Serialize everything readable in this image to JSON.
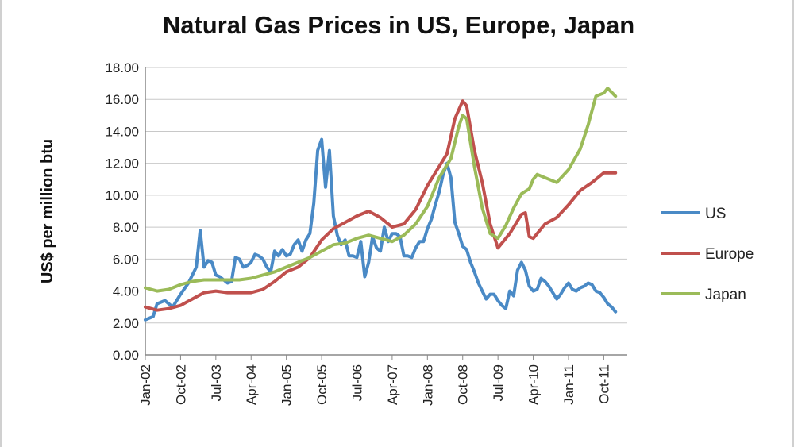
{
  "chart_data": {
    "type": "line",
    "title": "Natural Gas Prices in US, Europe, Japan",
    "ylabel": "US$ per million btu",
    "xlabel": "",
    "ylim": [
      0,
      18
    ],
    "yticks": [
      "0.00",
      "2.00",
      "4.00",
      "6.00",
      "8.00",
      "10.00",
      "12.00",
      "14.00",
      "16.00",
      "18.00"
    ],
    "xticks": [
      "Jan-02",
      "Oct-02",
      "Jul-03",
      "Apr-04",
      "Jan-05",
      "Oct-05",
      "Jul-06",
      "Apr-07",
      "Jan-08",
      "Oct-08",
      "Jul-09",
      "Apr-10",
      "Jan-11",
      "Oct-11"
    ],
    "grid": true,
    "legend_position": "right",
    "series": [
      {
        "name": "US",
        "color": "#4a8ac6",
        "points": [
          [
            "Jan-02",
            2.2
          ],
          [
            "Mar-02",
            2.4
          ],
          [
            "Apr-02",
            3.2
          ],
          [
            "Jun-02",
            3.4
          ],
          [
            "Aug-02",
            3.0
          ],
          [
            "Oct-02",
            3.8
          ],
          [
            "Dec-02",
            4.5
          ],
          [
            "Feb-03",
            5.5
          ],
          [
            "Mar-03",
            7.8
          ],
          [
            "Apr-03",
            5.5
          ],
          [
            "May-03",
            5.9
          ],
          [
            "Jun-03",
            5.8
          ],
          [
            "Jul-03",
            5.0
          ],
          [
            "Aug-03",
            4.9
          ],
          [
            "Sep-03",
            4.7
          ],
          [
            "Oct-03",
            4.5
          ],
          [
            "Nov-03",
            4.6
          ],
          [
            "Dec-03",
            6.1
          ],
          [
            "Jan-04",
            6.0
          ],
          [
            "Feb-04",
            5.5
          ],
          [
            "Mar-04",
            5.6
          ],
          [
            "Apr-04",
            5.8
          ],
          [
            "May-04",
            6.3
          ],
          [
            "Jun-04",
            6.2
          ],
          [
            "Jul-04",
            6.0
          ],
          [
            "Aug-04",
            5.5
          ],
          [
            "Sep-04",
            5.2
          ],
          [
            "Oct-04",
            6.5
          ],
          [
            "Nov-04",
            6.2
          ],
          [
            "Dec-04",
            6.6
          ],
          [
            "Jan-05",
            6.2
          ],
          [
            "Feb-05",
            6.3
          ],
          [
            "Mar-05",
            6.9
          ],
          [
            "Apr-05",
            7.2
          ],
          [
            "May-05",
            6.5
          ],
          [
            "Jun-05",
            7.2
          ],
          [
            "Jul-05",
            7.6
          ],
          [
            "Aug-05",
            9.5
          ],
          [
            "Sep-05",
            12.8
          ],
          [
            "Oct-05",
            13.5
          ],
          [
            "Nov-05",
            10.5
          ],
          [
            "Dec-05",
            12.8
          ],
          [
            "Jan-06",
            8.7
          ],
          [
            "Feb-06",
            7.5
          ],
          [
            "Mar-06",
            6.9
          ],
          [
            "Apr-06",
            7.2
          ],
          [
            "May-06",
            6.2
          ],
          [
            "Jun-06",
            6.2
          ],
          [
            "Jul-06",
            6.1
          ],
          [
            "Aug-06",
            7.1
          ],
          [
            "Sep-06",
            4.9
          ],
          [
            "Oct-06",
            5.8
          ],
          [
            "Nov-06",
            7.4
          ],
          [
            "Dec-06",
            6.7
          ],
          [
            "Jan-07",
            6.5
          ],
          [
            "Feb-07",
            8.0
          ],
          [
            "Mar-07",
            7.1
          ],
          [
            "Apr-07",
            7.6
          ],
          [
            "May-07",
            7.6
          ],
          [
            "Jun-07",
            7.4
          ],
          [
            "Jul-07",
            6.2
          ],
          [
            "Aug-07",
            6.2
          ],
          [
            "Sep-07",
            6.1
          ],
          [
            "Oct-07",
            6.7
          ],
          [
            "Nov-07",
            7.1
          ],
          [
            "Dec-07",
            7.1
          ],
          [
            "Jan-08",
            7.9
          ],
          [
            "Feb-08",
            8.5
          ],
          [
            "Mar-08",
            9.4
          ],
          [
            "Apr-08",
            10.2
          ],
          [
            "May-08",
            11.3
          ],
          [
            "Jun-08",
            12.0
          ],
          [
            "Jul-08",
            11.1
          ],
          [
            "Aug-08",
            8.3
          ],
          [
            "Sep-08",
            7.6
          ],
          [
            "Oct-08",
            6.8
          ],
          [
            "Nov-08",
            6.6
          ],
          [
            "Dec-08",
            5.8
          ],
          [
            "Jan-09",
            5.2
          ],
          [
            "Feb-09",
            4.5
          ],
          [
            "Mar-09",
            4.0
          ],
          [
            "Apr-09",
            3.5
          ],
          [
            "May-09",
            3.8
          ],
          [
            "Jun-09",
            3.8
          ],
          [
            "Jul-09",
            3.4
          ],
          [
            "Aug-09",
            3.1
          ],
          [
            "Sep-09",
            2.9
          ],
          [
            "Oct-09",
            4.0
          ],
          [
            "Nov-09",
            3.7
          ],
          [
            "Dec-09",
            5.3
          ],
          [
            "Jan-10",
            5.8
          ],
          [
            "Feb-10",
            5.3
          ],
          [
            "Mar-10",
            4.3
          ],
          [
            "Apr-10",
            4.0
          ],
          [
            "May-10",
            4.1
          ],
          [
            "Jun-10",
            4.8
          ],
          [
            "Jul-10",
            4.6
          ],
          [
            "Aug-10",
            4.3
          ],
          [
            "Sep-10",
            3.9
          ],
          [
            "Oct-10",
            3.5
          ],
          [
            "Nov-10",
            3.8
          ],
          [
            "Dec-10",
            4.2
          ],
          [
            "Jan-11",
            4.5
          ],
          [
            "Feb-11",
            4.1
          ],
          [
            "Mar-11",
            4.0
          ],
          [
            "Apr-11",
            4.2
          ],
          [
            "May-11",
            4.3
          ],
          [
            "Jun-11",
            4.5
          ],
          [
            "Jul-11",
            4.4
          ],
          [
            "Aug-11",
            4.0
          ],
          [
            "Sep-11",
            3.9
          ],
          [
            "Oct-11",
            3.6
          ],
          [
            "Nov-11",
            3.2
          ],
          [
            "Dec-11",
            3.0
          ],
          [
            "Jan-12",
            2.7
          ]
        ]
      },
      {
        "name": "Europe",
        "color": "#c0504d",
        "points": [
          [
            "Jan-02",
            3.0
          ],
          [
            "Apr-02",
            2.8
          ],
          [
            "Jul-02",
            2.9
          ],
          [
            "Oct-02",
            3.1
          ],
          [
            "Jan-03",
            3.5
          ],
          [
            "Apr-03",
            3.9
          ],
          [
            "Jul-03",
            4.0
          ],
          [
            "Oct-03",
            3.9
          ],
          [
            "Jan-04",
            3.9
          ],
          [
            "Apr-04",
            3.9
          ],
          [
            "Jul-04",
            4.1
          ],
          [
            "Oct-04",
            4.6
          ],
          [
            "Jan-05",
            5.2
          ],
          [
            "Apr-05",
            5.5
          ],
          [
            "Jul-05",
            6.1
          ],
          [
            "Oct-05",
            7.2
          ],
          [
            "Jan-06",
            7.9
          ],
          [
            "Apr-06",
            8.3
          ],
          [
            "Jul-06",
            8.7
          ],
          [
            "Oct-06",
            9.0
          ],
          [
            "Jan-07",
            8.6
          ],
          [
            "Apr-07",
            8.0
          ],
          [
            "Jul-07",
            8.2
          ],
          [
            "Oct-07",
            9.1
          ],
          [
            "Jan-08",
            10.6
          ],
          [
            "Apr-08",
            11.8
          ],
          [
            "Jun-08",
            12.6
          ],
          [
            "Aug-08",
            14.8
          ],
          [
            "Oct-08",
            15.9
          ],
          [
            "Nov-08",
            15.6
          ],
          [
            "Jan-09",
            12.8
          ],
          [
            "Mar-09",
            10.8
          ],
          [
            "May-09",
            8.2
          ],
          [
            "Jul-09",
            6.7
          ],
          [
            "Oct-09",
            7.6
          ],
          [
            "Jan-10",
            8.8
          ],
          [
            "Feb-10",
            8.9
          ],
          [
            "Mar-10",
            7.4
          ],
          [
            "Apr-10",
            7.3
          ],
          [
            "Jul-10",
            8.2
          ],
          [
            "Oct-10",
            8.6
          ],
          [
            "Jan-11",
            9.4
          ],
          [
            "Apr-11",
            10.3
          ],
          [
            "Jul-11",
            10.8
          ],
          [
            "Oct-11",
            11.4
          ],
          [
            "Jan-12",
            11.4
          ]
        ]
      },
      {
        "name": "Japan",
        "color": "#9bbb59",
        "points": [
          [
            "Jan-02",
            4.2
          ],
          [
            "Apr-02",
            4.0
          ],
          [
            "Jul-02",
            4.1
          ],
          [
            "Oct-02",
            4.4
          ],
          [
            "Jan-03",
            4.6
          ],
          [
            "Apr-03",
            4.7
          ],
          [
            "Jul-03",
            4.7
          ],
          [
            "Oct-03",
            4.7
          ],
          [
            "Jan-04",
            4.7
          ],
          [
            "Apr-04",
            4.8
          ],
          [
            "Jul-04",
            5.0
          ],
          [
            "Oct-04",
            5.2
          ],
          [
            "Jan-05",
            5.5
          ],
          [
            "Apr-05",
            5.8
          ],
          [
            "Jul-05",
            6.1
          ],
          [
            "Oct-05",
            6.5
          ],
          [
            "Jan-06",
            6.9
          ],
          [
            "Apr-06",
            7.0
          ],
          [
            "Jul-06",
            7.3
          ],
          [
            "Oct-06",
            7.5
          ],
          [
            "Jan-07",
            7.3
          ],
          [
            "Apr-07",
            7.1
          ],
          [
            "Jul-07",
            7.5
          ],
          [
            "Oct-07",
            8.2
          ],
          [
            "Jan-08",
            9.3
          ],
          [
            "Apr-08",
            11.1
          ],
          [
            "Jul-08",
            12.3
          ],
          [
            "Sep-08",
            14.3
          ],
          [
            "Oct-08",
            15.0
          ],
          [
            "Nov-08",
            14.8
          ],
          [
            "Jan-09",
            11.8
          ],
          [
            "Mar-09",
            9.2
          ],
          [
            "May-09",
            7.6
          ],
          [
            "Jul-09",
            7.3
          ],
          [
            "Sep-09",
            8.1
          ],
          [
            "Nov-09",
            9.2
          ],
          [
            "Jan-10",
            10.1
          ],
          [
            "Mar-10",
            10.4
          ],
          [
            "Apr-10",
            11.0
          ],
          [
            "May-10",
            11.3
          ],
          [
            "Jul-10",
            11.1
          ],
          [
            "Oct-10",
            10.8
          ],
          [
            "Jan-11",
            11.6
          ],
          [
            "Apr-11",
            12.9
          ],
          [
            "Jun-11",
            14.4
          ],
          [
            "Aug-11",
            16.2
          ],
          [
            "Oct-11",
            16.4
          ],
          [
            "Nov-11",
            16.7
          ],
          [
            "Jan-12",
            16.2
          ]
        ]
      }
    ]
  }
}
